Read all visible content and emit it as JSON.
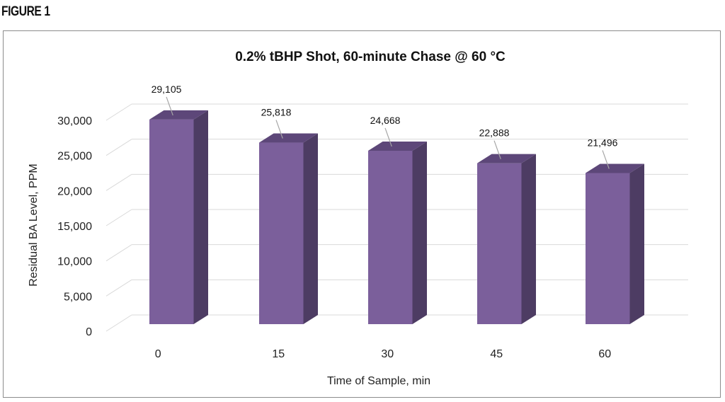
{
  "figure_label": "FIGURE 1",
  "colors": {
    "bar_front": "#7b5f9b",
    "bar_side": "#4d3c63",
    "bar_top": "#5d4779",
    "grid": "#d9d9d9",
    "leader": "#a6a6a6"
  },
  "chart_data": {
    "type": "bar",
    "title": "0.2% tBHP Shot, 60-minute Chase @ 60 °C",
    "xlabel": "Time of Sample, min",
    "ylabel": "Residual BA Level, PPM",
    "categories": [
      "0",
      "15",
      "30",
      "45",
      "60"
    ],
    "values": [
      29105,
      25818,
      24668,
      22888,
      21496
    ],
    "data_labels": [
      "29,105",
      "25,818",
      "24,668",
      "22,888",
      "21,496"
    ],
    "ylim": [
      0,
      30000
    ],
    "yticks": [
      0,
      5000,
      10000,
      15000,
      20000,
      25000,
      30000
    ],
    "ytick_labels": [
      "0",
      "5,000",
      "10,000",
      "15,000",
      "20,000",
      "25,000",
      "30,000"
    ],
    "grid": true,
    "legend": "none",
    "style": "3d-columns"
  }
}
